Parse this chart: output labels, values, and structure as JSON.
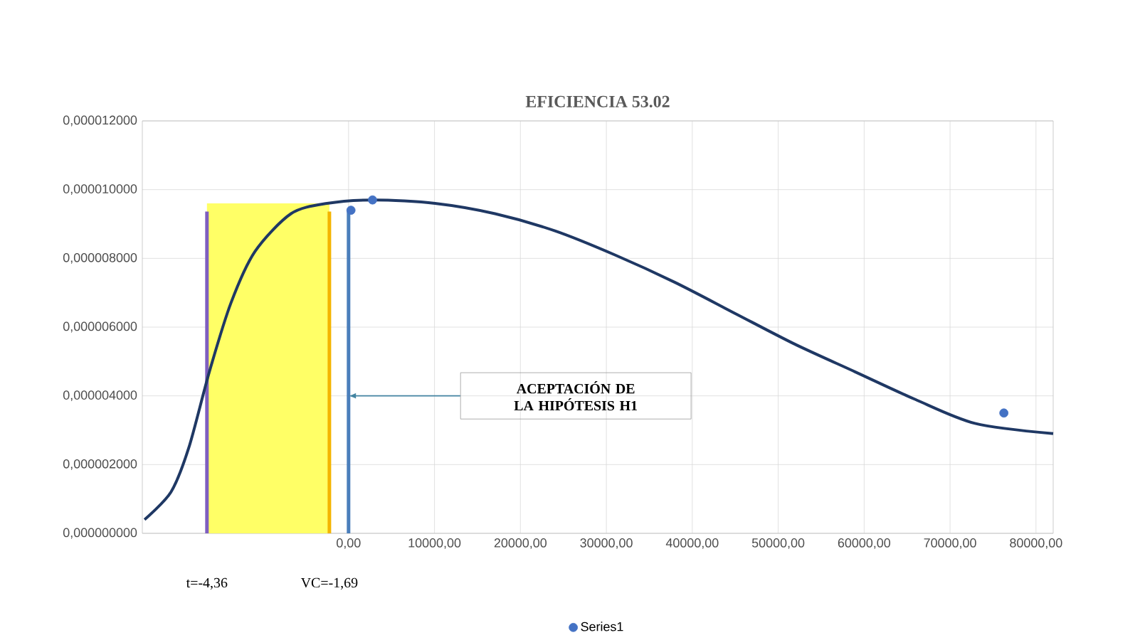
{
  "chart_data": {
    "type": "line",
    "title": "EFICIENCIA  53.02",
    "xlim": [
      -24000,
      82000
    ],
    "xticks": [
      {
        "value": 0,
        "label": "0,00"
      },
      {
        "value": 10000,
        "label": "10000,00"
      },
      {
        "value": 20000,
        "label": "20000,00"
      },
      {
        "value": 30000,
        "label": "30000,00"
      },
      {
        "value": 40000,
        "label": "40000,00"
      },
      {
        "value": 50000,
        "label": "50000,00"
      },
      {
        "value": 60000,
        "label": "60000,00"
      },
      {
        "value": 70000,
        "label": "70000,00"
      },
      {
        "value": 80000,
        "label": "80000,00"
      }
    ],
    "ylim": [
      0,
      1.2e-05
    ],
    "yticks": [
      {
        "value": 0,
        "label": "0,000000000"
      },
      {
        "value": 2e-06,
        "label": "0,000002000"
      },
      {
        "value": 4e-06,
        "label": "0,000004000"
      },
      {
        "value": 6e-06,
        "label": "0,000006000"
      },
      {
        "value": 8e-06,
        "label": "0,000008000"
      },
      {
        "value": 1e-05,
        "label": "0,000010000"
      },
      {
        "value": 1.2e-05,
        "label": "0,000012000"
      }
    ],
    "grid": true,
    "legend": "bottom",
    "series": [
      {
        "color": "#1f3864",
        "marker": "none",
        "x": [
          -23740,
          -20670,
          -18580,
          -16200,
          -13690,
          -10890,
          -6700,
          -2510,
          3070,
          10060,
          17040,
          24020,
          31000,
          37990,
          44970,
          51960,
          58940,
          65920,
          72900,
          82000
        ],
        "values": [
          4e-07,
          1.2e-06,
          2.5e-06,
          4.7e-06,
          6.7e-06,
          8.2e-06,
          9.3e-06,
          9.6e-06,
          9.7e-06,
          9.6e-06,
          9.3e-06,
          8.8e-06,
          8.1e-06,
          7.3e-06,
          6.4e-06,
          5.5e-06,
          4.7e-06,
          3.9e-06,
          3.2e-06,
          2.9e-06
        ]
      },
      {
        "type": "scatter",
        "name": "Series1",
        "color": "#4472c4",
        "marker": "circle",
        "x": [
          280,
          2790,
          76260
        ],
        "values": [
          9.4e-06,
          9.7e-06,
          3.5e-06
        ]
      }
    ],
    "bands": [
      {
        "axis": "x",
        "from": -16480,
        "to": -2230,
        "color": "#ffff66"
      }
    ],
    "ref_lines": [
      {
        "axis": "x",
        "value": -16480,
        "color": "#7f5fbf"
      },
      {
        "axis": "x",
        "value": -2230,
        "color": "#f4b400"
      },
      {
        "axis": "x",
        "value": 0,
        "color": "#4a7ebb"
      }
    ],
    "annotations": [
      "ACEPTACIÓN  DE LA HIPÓTESIS  H1",
      "t=-4,36",
      "VC=-1,69"
    ]
  }
}
